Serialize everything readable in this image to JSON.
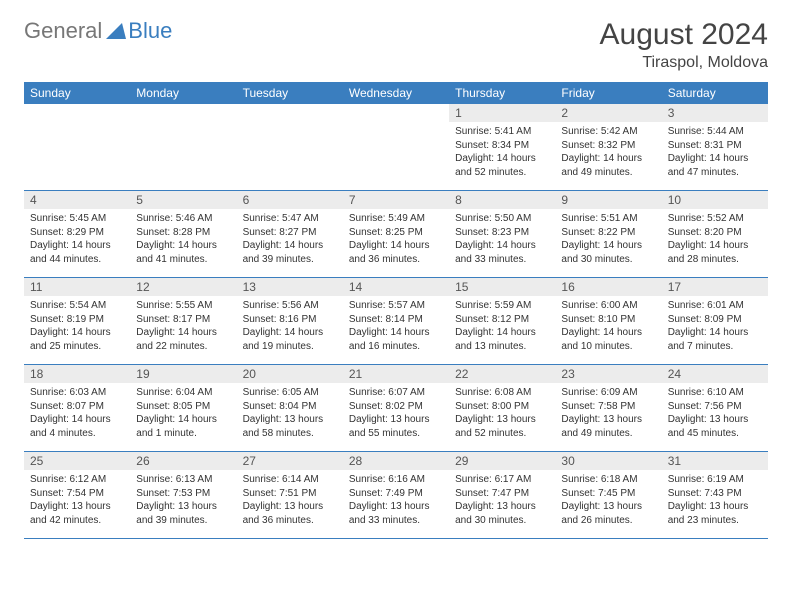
{
  "brand": {
    "general": "General",
    "blue": "Blue"
  },
  "title": "August 2024",
  "location": "Tiraspol, Moldova",
  "colors": {
    "accent": "#3a7ebf",
    "daynum_bg": "#ececec",
    "text": "#333333",
    "muted": "#777777"
  },
  "dayHeaders": [
    "Sunday",
    "Monday",
    "Tuesday",
    "Wednesday",
    "Thursday",
    "Friday",
    "Saturday"
  ],
  "weeks": [
    [
      null,
      null,
      null,
      null,
      {
        "n": "1",
        "sr": "5:41 AM",
        "ss": "8:34 PM",
        "dl": "14 hours and 52 minutes."
      },
      {
        "n": "2",
        "sr": "5:42 AM",
        "ss": "8:32 PM",
        "dl": "14 hours and 49 minutes."
      },
      {
        "n": "3",
        "sr": "5:44 AM",
        "ss": "8:31 PM",
        "dl": "14 hours and 47 minutes."
      }
    ],
    [
      {
        "n": "4",
        "sr": "5:45 AM",
        "ss": "8:29 PM",
        "dl": "14 hours and 44 minutes."
      },
      {
        "n": "5",
        "sr": "5:46 AM",
        "ss": "8:28 PM",
        "dl": "14 hours and 41 minutes."
      },
      {
        "n": "6",
        "sr": "5:47 AM",
        "ss": "8:27 PM",
        "dl": "14 hours and 39 minutes."
      },
      {
        "n": "7",
        "sr": "5:49 AM",
        "ss": "8:25 PM",
        "dl": "14 hours and 36 minutes."
      },
      {
        "n": "8",
        "sr": "5:50 AM",
        "ss": "8:23 PM",
        "dl": "14 hours and 33 minutes."
      },
      {
        "n": "9",
        "sr": "5:51 AM",
        "ss": "8:22 PM",
        "dl": "14 hours and 30 minutes."
      },
      {
        "n": "10",
        "sr": "5:52 AM",
        "ss": "8:20 PM",
        "dl": "14 hours and 28 minutes."
      }
    ],
    [
      {
        "n": "11",
        "sr": "5:54 AM",
        "ss": "8:19 PM",
        "dl": "14 hours and 25 minutes."
      },
      {
        "n": "12",
        "sr": "5:55 AM",
        "ss": "8:17 PM",
        "dl": "14 hours and 22 minutes."
      },
      {
        "n": "13",
        "sr": "5:56 AM",
        "ss": "8:16 PM",
        "dl": "14 hours and 19 minutes."
      },
      {
        "n": "14",
        "sr": "5:57 AM",
        "ss": "8:14 PM",
        "dl": "14 hours and 16 minutes."
      },
      {
        "n": "15",
        "sr": "5:59 AM",
        "ss": "8:12 PM",
        "dl": "14 hours and 13 minutes."
      },
      {
        "n": "16",
        "sr": "6:00 AM",
        "ss": "8:10 PM",
        "dl": "14 hours and 10 minutes."
      },
      {
        "n": "17",
        "sr": "6:01 AM",
        "ss": "8:09 PM",
        "dl": "14 hours and 7 minutes."
      }
    ],
    [
      {
        "n": "18",
        "sr": "6:03 AM",
        "ss": "8:07 PM",
        "dl": "14 hours and 4 minutes."
      },
      {
        "n": "19",
        "sr": "6:04 AM",
        "ss": "8:05 PM",
        "dl": "14 hours and 1 minute."
      },
      {
        "n": "20",
        "sr": "6:05 AM",
        "ss": "8:04 PM",
        "dl": "13 hours and 58 minutes."
      },
      {
        "n": "21",
        "sr": "6:07 AM",
        "ss": "8:02 PM",
        "dl": "13 hours and 55 minutes."
      },
      {
        "n": "22",
        "sr": "6:08 AM",
        "ss": "8:00 PM",
        "dl": "13 hours and 52 minutes."
      },
      {
        "n": "23",
        "sr": "6:09 AM",
        "ss": "7:58 PM",
        "dl": "13 hours and 49 minutes."
      },
      {
        "n": "24",
        "sr": "6:10 AM",
        "ss": "7:56 PM",
        "dl": "13 hours and 45 minutes."
      }
    ],
    [
      {
        "n": "25",
        "sr": "6:12 AM",
        "ss": "7:54 PM",
        "dl": "13 hours and 42 minutes."
      },
      {
        "n": "26",
        "sr": "6:13 AM",
        "ss": "7:53 PM",
        "dl": "13 hours and 39 minutes."
      },
      {
        "n": "27",
        "sr": "6:14 AM",
        "ss": "7:51 PM",
        "dl": "13 hours and 36 minutes."
      },
      {
        "n": "28",
        "sr": "6:16 AM",
        "ss": "7:49 PM",
        "dl": "13 hours and 33 minutes."
      },
      {
        "n": "29",
        "sr": "6:17 AM",
        "ss": "7:47 PM",
        "dl": "13 hours and 30 minutes."
      },
      {
        "n": "30",
        "sr": "6:18 AM",
        "ss": "7:45 PM",
        "dl": "13 hours and 26 minutes."
      },
      {
        "n": "31",
        "sr": "6:19 AM",
        "ss": "7:43 PM",
        "dl": "13 hours and 23 minutes."
      }
    ]
  ],
  "labels": {
    "sunrise": "Sunrise:",
    "sunset": "Sunset:",
    "daylight": "Daylight:"
  }
}
